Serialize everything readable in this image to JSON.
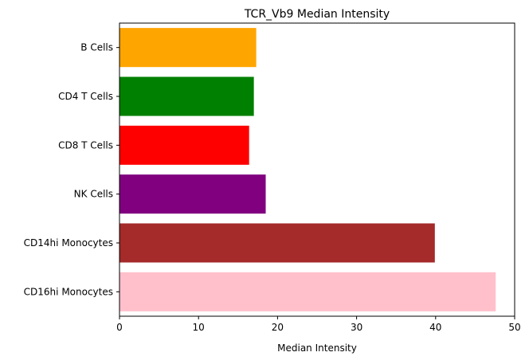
{
  "chart_data": {
    "type": "bar",
    "orientation": "horizontal",
    "title": "TCR_Vb9 Median Intensity",
    "xlabel": "Median Intensity",
    "ylabel": "",
    "xlim": [
      0,
      50
    ],
    "xticks": [
      0,
      10,
      20,
      30,
      40,
      50
    ],
    "grid": false,
    "categories": [
      "B Cells",
      "CD4 T Cells",
      "CD8 T Cells",
      "NK Cells",
      "CD14hi Monocytes",
      "CD16hi Monocytes"
    ],
    "values": [
      17.3,
      17.0,
      16.4,
      18.5,
      39.9,
      47.6
    ],
    "colors": [
      "#ffa500",
      "#008000",
      "#ff0000",
      "#800080",
      "#a52a2a",
      "#ffc0cb"
    ]
  }
}
